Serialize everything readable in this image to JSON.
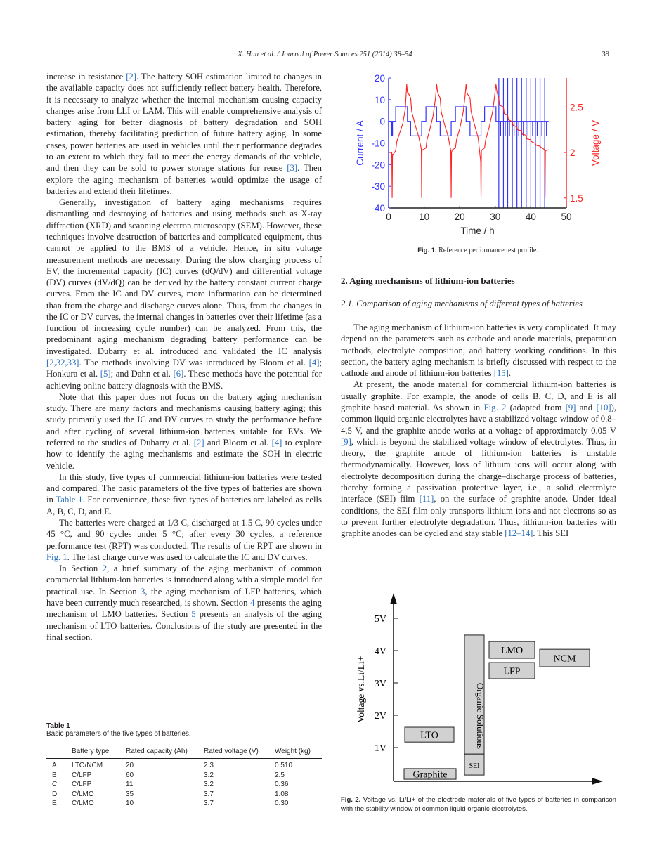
{
  "header": {
    "running_title": "X. Han et al. / Journal of Power Sources 251 (2014) 38–54",
    "page_number": "39"
  },
  "left_column": {
    "paragraphs": [
      {
        "noindent": true,
        "segments": [
          {
            "t": "increase in resistance "
          },
          {
            "t": "[2]",
            "link": true
          },
          {
            "t": ". The battery SOH estimation limited to changes in the available capacity does not sufficiently reflect battery health. Therefore, it is necessary to analyze whether the internal mechanism causing capacity changes arise from LLI or LAM. This will enable comprehensive analysis of battery aging for better diagnosis of battery degradation and SOH estimation, thereby facilitating prediction of future battery aging. In some cases, power batteries are used in vehicles until their performance degrades to an extent to which they fail to meet the energy demands of the vehicle, and then they can be sold to power storage stations for reuse "
          },
          {
            "t": "[3]",
            "link": true
          },
          {
            "t": ". Then explore the aging mechanism of batteries would optimize the usage of batteries and extend their lifetimes."
          }
        ]
      },
      {
        "segments": [
          {
            "t": "Generally, investigation of battery aging mechanisms requires dismantling and destroying of batteries and using methods such as X-ray diffraction (XRD) and scanning electron microscopy (SEM). However, these techniques involve destruction of batteries and complicated equipment, thus cannot be applied to the BMS of a vehicle. Hence, in situ voltage measurement methods are necessary. During the slow charging process of EV, the incremental capacity (IC) curves (dQ/dV) and differential voltage (DV) curves (dV/dQ) can be derived by the battery constant current charge curves. From the IC and DV curves, more information can be determined than from the charge and discharge curves alone. Thus, from the changes in the IC or DV curves, the internal changes in batteries over their lifetime (as a function of increasing cycle number) can be analyzed. From this, the predominant aging mechanism degrading battery performance can be investigated. Dubarry et al. introduced and validated the IC analysis "
          },
          {
            "t": "[2,32,33]",
            "link": true
          },
          {
            "t": ". The methods involving DV was introduced by Bloom et al. "
          },
          {
            "t": "[4]",
            "link": true
          },
          {
            "t": "; Honkura et al. "
          },
          {
            "t": "[5]",
            "link": true
          },
          {
            "t": "; and Dahn et al. "
          },
          {
            "t": "[6]",
            "link": true
          },
          {
            "t": ". These methods have the potential for achieving online battery diagnosis with the BMS."
          }
        ]
      },
      {
        "segments": [
          {
            "t": "Note that this paper does not focus on the battery aging mechanism study. There are many factors and mechanisms causing battery aging; this study primarily used the IC and DV curves to study the performance before and after cycling of several lithium-ion batteries suitable for EVs. We referred to the studies of Dubarry et al. "
          },
          {
            "t": "[2]",
            "link": true
          },
          {
            "t": " and Bloom et al. "
          },
          {
            "t": "[4]",
            "link": true
          },
          {
            "t": " to explore how to identify the aging mechanisms and estimate the SOH in electric vehicle."
          }
        ]
      },
      {
        "segments": [
          {
            "t": "In this study, five types of commercial lithium-ion batteries were tested and compared. The basic parameters of the five types of batteries are shown in "
          },
          {
            "t": "Table 1",
            "link": true
          },
          {
            "t": ". For convenience, these five types of batteries are labeled as cells A, B, C, D, and E."
          }
        ]
      },
      {
        "segments": [
          {
            "t": "The batteries were charged at 1/3 C, discharged at 1.5 C, 90 cycles under 45 °C, and 90 cycles under 5 °C; after every 30 cycles, a reference performance test (RPT) was conducted. The results of the RPT are shown in "
          },
          {
            "t": "Fig. 1",
            "link": true
          },
          {
            "t": ". The last charge curve was used to calculate the IC and DV curves."
          }
        ]
      },
      {
        "segments": [
          {
            "t": "In Section "
          },
          {
            "t": "2",
            "link": true
          },
          {
            "t": ", a brief summary of the aging mechanism of common commercial lithium-ion batteries is introduced along with a simple model for practical use. In Section "
          },
          {
            "t": "3",
            "link": true
          },
          {
            "t": ", the aging mechanism of LFP batteries, which have been currently much researched, is shown. Section "
          },
          {
            "t": "4",
            "link": true
          },
          {
            "t": " presents the aging mechanism of LMO batteries. Section "
          },
          {
            "t": "5",
            "link": true
          },
          {
            "t": " presents an analysis of the aging mechanism of LTO batteries. Conclusions of the study are presented in the final section."
          }
        ]
      }
    ]
  },
  "table1": {
    "label": "Table 1",
    "caption": "Basic parameters of the five types of batteries.",
    "columns": [
      "",
      "Battery type",
      "Rated capacity (Ah)",
      "Rated voltage (V)",
      "Weight (kg)"
    ],
    "rows": [
      [
        "A",
        "LTO/NCM",
        "20",
        "2.3",
        "0.510"
      ],
      [
        "B",
        "C/LFP",
        "60",
        "3.2",
        "2.5"
      ],
      [
        "C",
        "C/LFP",
        "11",
        "3.2",
        "0.36"
      ],
      [
        "D",
        "C/LMO",
        "35",
        "3.7",
        "1.08"
      ],
      [
        "E",
        "C/LMO",
        "10",
        "3.7",
        "0.30"
      ]
    ]
  },
  "fig1": {
    "caption_label": "Fig. 1.",
    "caption": "Reference performance test profile.",
    "chart_data": {
      "type": "line",
      "xlabel": "Time / h",
      "xlim": [
        0,
        50
      ],
      "xticks": [
        0,
        10,
        20,
        30,
        40,
        50
      ],
      "ylabel_left": "Current / A",
      "ylim_left": [
        -40,
        20
      ],
      "yticks_left": [
        -40,
        -30,
        -20,
        -10,
        0,
        10,
        20
      ],
      "ylabel_right": "Voltage / V",
      "ylim_right": [
        1.39,
        2.82
      ],
      "yticks_right": [
        1.5,
        2,
        2.5
      ],
      "colors": {
        "current": "#3333ff",
        "voltage": "#ff2020"
      },
      "current_x": [
        0,
        0.9,
        0.9,
        1.1,
        1.1,
        2,
        2,
        5.3,
        5.3,
        6.2,
        6.2,
        9.3,
        9.3,
        10.5,
        10.5,
        13.5,
        13.5,
        14.5,
        14.5,
        17.6,
        17.6,
        18.8,
        18.8,
        21.8,
        21.8,
        22.9,
        22.9,
        26,
        26,
        27,
        27,
        30.2,
        30.2,
        45
      ],
      "current_y": [
        0,
        0,
        -6.7,
        -6.7,
        0,
        0,
        6.7,
        6.7,
        0,
        0,
        -6.7,
        -6.7,
        0,
        0,
        6.7,
        6.7,
        0,
        0,
        -6.7,
        -6.7,
        0,
        0,
        6.7,
        6.7,
        0,
        0,
        -6.7,
        -6.7,
        0,
        0,
        6.7,
        6.7,
        0,
        0
      ],
      "pulse_times": [
        31,
        32.3,
        33.5,
        34.8,
        36.1,
        37.4,
        38.7,
        40,
        41.3,
        42.6,
        43.9
      ],
      "pulse_high": 20,
      "pulse_low": -6.7,
      "voltage_x": [
        0,
        0.9,
        1,
        1.1,
        1.3,
        2,
        2.3,
        3,
        4,
        4.7,
        5.1,
        5.3,
        5.6,
        6.2,
        6.5,
        7.5,
        8.5,
        9.2,
        9.3,
        9.4,
        9.6,
        10.5,
        10.8,
        11.5,
        12.5,
        13.2,
        13.5,
        13.8,
        14.5,
        14.8,
        15.8,
        16.8,
        17.5,
        17.6,
        17.7,
        17.9,
        18.8,
        19.1,
        20,
        21,
        21.5,
        21.8,
        22.1,
        22.9,
        23.2,
        24.2,
        25.2,
        25.9,
        26,
        26.1,
        26.3,
        27,
        27.3,
        28.3,
        29.3,
        29.9,
        30.2,
        30.5,
        31,
        31.2,
        32.3,
        32.5,
        33.5,
        33.7,
        34.8,
        35,
        36.1,
        36.3,
        37.4,
        37.6,
        38.7,
        38.9,
        40,
        40.2,
        41.3,
        41.5,
        42.6,
        42.8,
        43.9,
        44,
        44.1,
        45
      ],
      "voltage_y": [
        2.0,
        2.0,
        1.5,
        1.98,
        1.98,
        2.02,
        2.12,
        2.2,
        2.32,
        2.48,
        2.75,
        2.66,
        2.65,
        2.6,
        2.45,
        2.3,
        2.17,
        2.04,
        1.5,
        2.02,
        2.03,
        2.05,
        2.14,
        2.24,
        2.4,
        2.6,
        2.75,
        2.66,
        2.6,
        2.45,
        2.3,
        2.17,
        2.02,
        1.5,
        2.0,
        2.03,
        2.05,
        2.14,
        2.26,
        2.45,
        2.62,
        2.75,
        2.65,
        2.6,
        2.45,
        2.3,
        2.16,
        1.9,
        1.5,
        2.02,
        2.03,
        2.05,
        2.14,
        2.28,
        2.46,
        2.65,
        2.75,
        2.66,
        2.6,
        2.52,
        2.5,
        2.43,
        2.41,
        2.36,
        2.34,
        2.3,
        2.28,
        2.25,
        2.24,
        2.2,
        2.19,
        2.15,
        2.14,
        2.12,
        2.1,
        2.08,
        2.07,
        2.06,
        2.03,
        1.5,
        2.02,
        2.03
      ]
    }
  },
  "section2": {
    "heading": "2. Aging mechanisms of lithium-ion batteries",
    "subheading": "2.1. Comparison of aging mechanisms of different types of batteries",
    "paragraphs": [
      {
        "segments": [
          {
            "t": "The aging mechanism of lithium-ion batteries is very complicated. It may depend on the parameters such as cathode and anode materials, preparation methods, electrolyte composition, and battery working conditions. In this section, the battery aging mechanism is briefly discussed with respect to the cathode and anode of lithium-ion batteries "
          },
          {
            "t": "[15]",
            "link": true
          },
          {
            "t": "."
          }
        ]
      },
      {
        "segments": [
          {
            "t": "At present, the anode material for commercial lithium-ion batteries is usually graphite. For example, the anode of cells B, C, D, and E is all graphite based material. As shown in "
          },
          {
            "t": "Fig. 2",
            "link": true
          },
          {
            "t": " (adapted from "
          },
          {
            "t": "[9]",
            "link": true
          },
          {
            "t": " and "
          },
          {
            "t": "[10]",
            "link": true
          },
          {
            "t": "), common liquid organic electrolytes have a stabilized voltage window of 0.8–4.5 V, and the graphite anode works at a voltage of approximately 0.05 V "
          },
          {
            "t": "[9]",
            "link": true
          },
          {
            "t": ", which is beyond the stabilized voltage window of electrolytes. Thus, in theory, the graphite anode of lithium-ion batteries is unstable thermodynamically. However, loss of lithium ions will occur along with electrolyte decomposition during the charge–discharge process of batteries, thereby forming a passivation protective layer, i.e., a solid electrolyte interface (SEI) film "
          },
          {
            "t": "[11]",
            "link": true
          },
          {
            "t": ", on the surface of graphite anode. Under ideal conditions, the SEI film only transports lithium ions and not electrons so as to prevent further electrolyte degradation. Thus, lithium-ion batteries with graphite anodes can be cycled and stay stable "
          },
          {
            "t": "[12–14]",
            "link": true
          },
          {
            "t": ". This SEI"
          }
        ]
      }
    ]
  },
  "fig2": {
    "caption_label": "Fig. 2.",
    "caption": "Voltage vs. Li/Li+ of the electrode materials of five types of batteries in comparison with the stability window of common liquid organic electrolytes.",
    "ylabel": "Voltage vs.Li/Li+",
    "yticks": [
      "1V",
      "2V",
      "3V",
      "4V",
      "5V"
    ],
    "boxes": [
      {
        "label": "Graphite",
        "v": [
          0.02,
          0.35
        ]
      },
      {
        "label": "LTO",
        "v": [
          1.17,
          1.63
        ]
      },
      {
        "label": "Organic Solutions",
        "v": [
          0.8,
          4.48
        ],
        "vertical": true
      },
      {
        "label": "SEI",
        "v": [
          0.15,
          0.8
        ]
      },
      {
        "label": "LMO",
        "v": [
          3.76,
          4.28
        ]
      },
      {
        "label": "LFP",
        "v": [
          3.13,
          3.63
        ]
      },
      {
        "label": "NCM",
        "v": [
          3.5,
          4.04
        ]
      }
    ],
    "box_fill": "#d1d1d1"
  }
}
